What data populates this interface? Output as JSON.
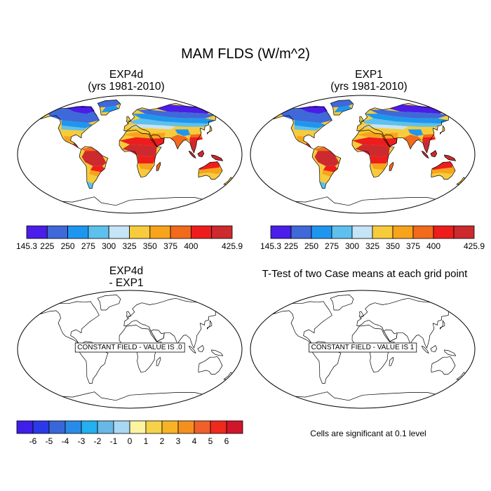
{
  "figure": {
    "title": "MAM FLDS (W/m^2)",
    "note": "Cells are significant at 0.1 level"
  },
  "chart_data": [
    {
      "type": "heatmap",
      "panel": "top-left",
      "title_line1": "EXP4d",
      "title_line2": "(yrs 1981-2010)",
      "variable": "FLDS",
      "units": "W/m^2",
      "projection": "Robinson (global)",
      "colorbar": {
        "labels": [
          "145.3",
          "225",
          "250",
          "275",
          "300",
          "325",
          "350",
          "375",
          "400",
          "425.9"
        ],
        "colors": [
          "#4a1de8",
          "#3f68d9",
          "#1e96f0",
          "#5ec0ec",
          "#c5e4f5",
          "#f7cb3c",
          "#f7a31c",
          "#f26a1b",
          "#ee1d1d",
          "#cc2a2e"
        ]
      },
      "regions": [
        {
          "name": "North America high latitudes",
          "band": "145.3-250"
        },
        {
          "name": "Southern USA / Mexico",
          "band": "325-375"
        },
        {
          "name": "Amazon / tropical South America",
          "band": "400-425.9"
        },
        {
          "name": "Southern South America",
          "band": "300-350"
        },
        {
          "name": "Northern Eurasia / Siberia",
          "band": "145.3-275"
        },
        {
          "name": "Tibet Plateau",
          "band": "250-300"
        },
        {
          "name": "Sahara / North Africa",
          "band": "350-400"
        },
        {
          "name": "Central Africa",
          "band": "400-425.9"
        },
        {
          "name": "India / Southeast Asia",
          "band": "400-425.9"
        },
        {
          "name": "Northern Australia",
          "band": "375-400"
        },
        {
          "name": "Southern Australia",
          "band": "325-350"
        },
        {
          "name": "Antarctica",
          "band": "no data"
        }
      ]
    },
    {
      "type": "heatmap",
      "panel": "top-right",
      "title_line1": "EXP1",
      "title_line2": "(yrs 1981-2010)",
      "variable": "FLDS",
      "units": "W/m^2",
      "projection": "Robinson (global)",
      "colorbar": {
        "labels": [
          "145.3",
          "225",
          "250",
          "275",
          "300",
          "325",
          "350",
          "375",
          "400",
          "425.9"
        ],
        "colors": [
          "#4a1de8",
          "#3f68d9",
          "#1e96f0",
          "#5ec0ec",
          "#c5e4f5",
          "#f7cb3c",
          "#f7a31c",
          "#f26a1b",
          "#ee1d1d",
          "#cc2a2e"
        ]
      },
      "regions": [
        {
          "name": "North America high latitudes",
          "band": "145.3-250"
        },
        {
          "name": "Southern USA / Mexico",
          "band": "325-375"
        },
        {
          "name": "Amazon / tropical South America",
          "band": "400-425.9"
        },
        {
          "name": "Southern South America",
          "band": "300-350"
        },
        {
          "name": "Northern Eurasia / Siberia",
          "band": "145.3-275"
        },
        {
          "name": "Tibet Plateau",
          "band": "250-300"
        },
        {
          "name": "Sahara / North Africa",
          "band": "350-400"
        },
        {
          "name": "Central Africa",
          "band": "400-425.9"
        },
        {
          "name": "India / Southeast Asia",
          "band": "400-425.9"
        },
        {
          "name": "Northern Australia",
          "band": "375-400"
        },
        {
          "name": "Southern Australia",
          "band": "325-350"
        },
        {
          "name": "Antarctica",
          "band": "no data"
        }
      ]
    },
    {
      "type": "heatmap",
      "panel": "bottom-left",
      "title_line1": "EXP4d",
      "title_line2": "- EXP1",
      "constant_label": "CONSTANT FIELD - VALUE IS .0",
      "constant_value": 0,
      "colorbar": {
        "labels": [
          "-6",
          "-5",
          "-4",
          "-3",
          "-2",
          "-1",
          "0",
          "1",
          "2",
          "3",
          "4",
          "5",
          "6"
        ],
        "colors": [
          "#3f1ee8",
          "#2a3ae8",
          "#3868d8",
          "#2a8ae8",
          "#22b0f0",
          "#68b8e6",
          "#a8d8f2",
          "#fcf4a0",
          "#f6d24a",
          "#f7b326",
          "#f49020",
          "#f0602a",
          "#ee2a1e",
          "#d0162a"
        ]
      }
    },
    {
      "type": "heatmap",
      "panel": "bottom-right",
      "title": "T-Test of two Case means at each grid point",
      "constant_label": "CONSTANT FIELD - VALUE IS 1",
      "constant_value": 1
    }
  ]
}
